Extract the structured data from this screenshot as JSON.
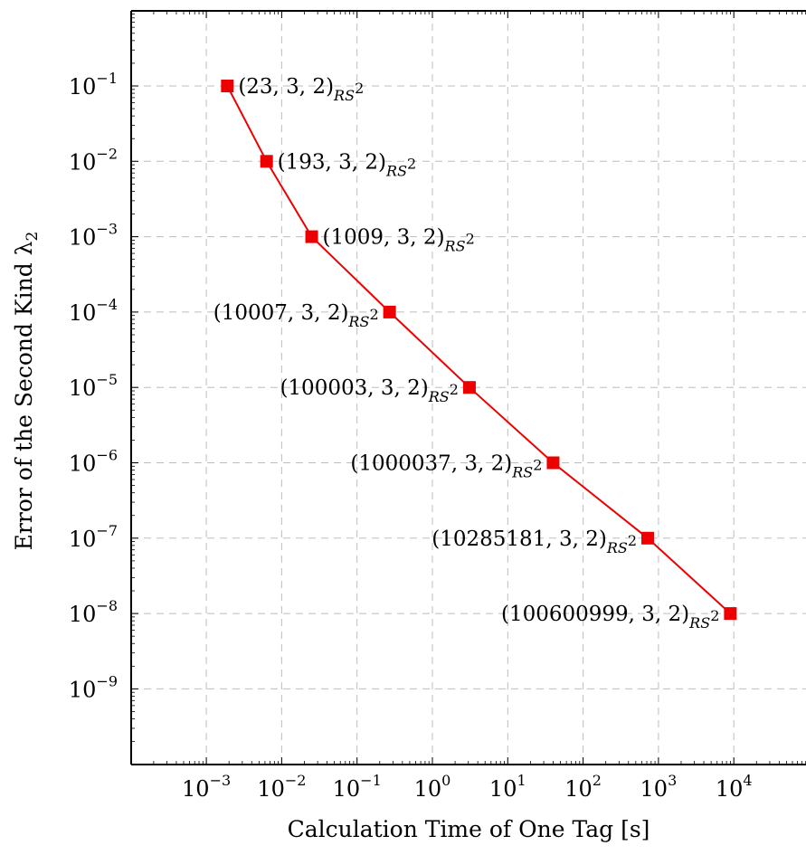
{
  "chart_data": {
    "type": "line",
    "xlabel": "Calculation Time of One Tag [s]",
    "ylabel": "Error of the Second Kind λ",
    "ylabel_subscript": "2",
    "xscale": "log",
    "yscale": "log",
    "xlim": [
      0.0002,
      100000
    ],
    "ylim": [
      1e-10,
      1
    ],
    "grid": true,
    "grid_style": "dashed",
    "x_ticks": [
      {
        "base": "10",
        "exp": "−3",
        "value": 0.001
      },
      {
        "base": "10",
        "exp": "−2",
        "value": 0.01
      },
      {
        "base": "10",
        "exp": "−1",
        "value": 0.1
      },
      {
        "base": "10",
        "exp": "0",
        "value": 1
      },
      {
        "base": "10",
        "exp": "1",
        "value": 10
      },
      {
        "base": "10",
        "exp": "2",
        "value": 100
      },
      {
        "base": "10",
        "exp": "3",
        "value": 1000
      },
      {
        "base": "10",
        "exp": "4",
        "value": 10000
      }
    ],
    "y_ticks": [
      {
        "base": "10",
        "exp": "−1",
        "value": 0.1
      },
      {
        "base": "10",
        "exp": "−2",
        "value": 0.01
      },
      {
        "base": "10",
        "exp": "−3",
        "value": 0.001
      },
      {
        "base": "10",
        "exp": "−4",
        "value": 0.0001
      },
      {
        "base": "10",
        "exp": "−5",
        "value": 1e-05
      },
      {
        "base": "10",
        "exp": "−6",
        "value": 1e-06
      },
      {
        "base": "10",
        "exp": "−7",
        "value": 1e-07
      },
      {
        "base": "10",
        "exp": "−8",
        "value": 1e-08
      },
      {
        "base": "10",
        "exp": "−9",
        "value": 1e-09
      }
    ],
    "series": [
      {
        "color": "#ee0000",
        "marker": "square",
        "points": [
          {
            "x": 0.0019,
            "y": 0.1,
            "label": "(23, 3, 2)",
            "label_sub": "RS",
            "label_sub_sup": "2",
            "label_side": "right"
          },
          {
            "x": 0.0063,
            "y": 0.01,
            "label": "(193, 3, 2)",
            "label_sub": "RS",
            "label_sub_sup": "2",
            "label_side": "right"
          },
          {
            "x": 0.025,
            "y": 0.001,
            "label": "(1009, 3, 2)",
            "label_sub": "RS",
            "label_sub_sup": "2",
            "label_side": "right"
          },
          {
            "x": 0.27,
            "y": 0.0001,
            "label": "(10007, 3, 2)",
            "label_sub": "RS",
            "label_sub_sup": "2",
            "label_side": "left"
          },
          {
            "x": 3.1,
            "y": 1e-05,
            "label": "(100003, 3, 2)",
            "label_sub": "RS",
            "label_sub_sup": "2",
            "label_side": "left"
          },
          {
            "x": 40,
            "y": 1e-06,
            "label": "(1000037, 3, 2)",
            "label_sub": "RS",
            "label_sub_sup": "2",
            "label_side": "left"
          },
          {
            "x": 720,
            "y": 1e-07,
            "label": "(10285181, 3, 2)",
            "label_sub": "RS",
            "label_sub_sup": "2",
            "label_side": "left"
          },
          {
            "x": 9000,
            "y": 1e-08,
            "label": "(100600999, 3, 2)",
            "label_sub": "RS",
            "label_sub_sup": "2",
            "label_side": "left"
          }
        ]
      }
    ]
  }
}
